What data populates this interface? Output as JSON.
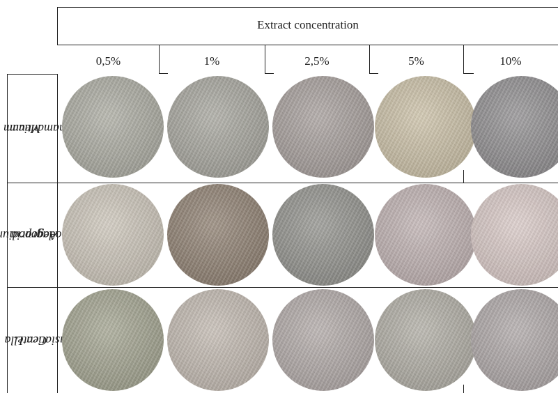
{
  "header": {
    "title": "Extract concentration",
    "concentrations": [
      "0,5%",
      "1%",
      "2,5%",
      "5%",
      "10%"
    ]
  },
  "rows": [
    {
      "label_lines": [
        "Meum",
        "athamanticum"
      ],
      "well_colors": [
        "#a8a89e",
        "#a3a29a",
        "#a39b98",
        "#c8bda3",
        "#8c8a8c"
      ]
    },
    {
      "label_lines": [
        "Aegopodium",
        "podagraria"
      ],
      "well_colors": [
        "#c9c2b6",
        "#8b7c6d",
        "#8e8e89",
        "#bcaeae",
        "#d6c6c3"
      ]
    },
    {
      "label_lines": [
        "Centella",
        "asiatica L."
      ],
      "well_colors": [
        "#9fa08c",
        "#bfb6ad",
        "#aea6a4",
        "#adaaa1",
        "#aba4a4"
      ]
    }
  ]
}
